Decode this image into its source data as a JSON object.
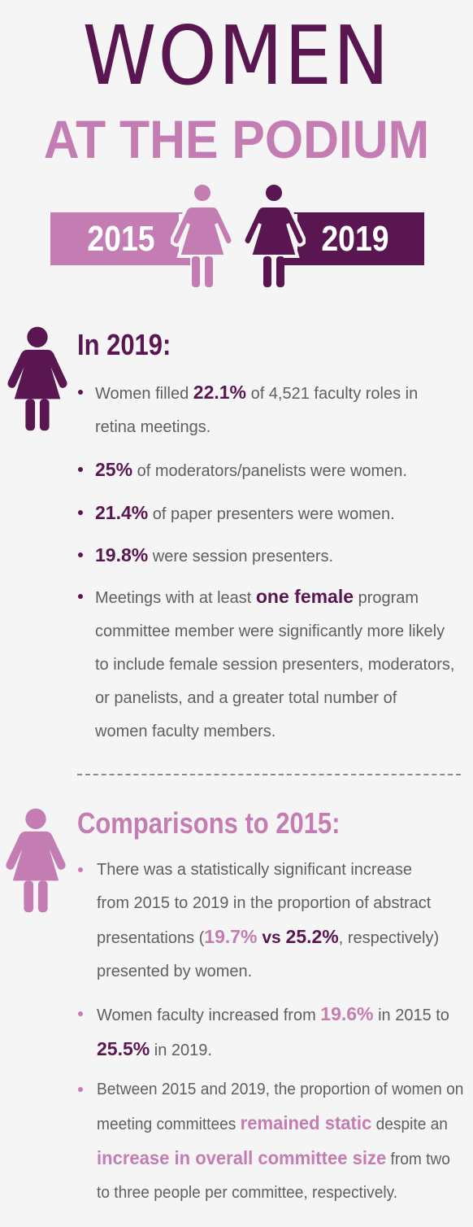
{
  "header": {
    "title_line1": "WOMEN",
    "title_line2": "AT THE PODIUM",
    "year_left": "2015",
    "year_right": "2019"
  },
  "colors": {
    "dark_purple": "#5a1650",
    "pink": "#c47db2",
    "text_gray": "#5f5f5f",
    "background": "#f5f5f5"
  },
  "icons": [
    "woman-figure-icon"
  ],
  "section_2019": {
    "heading": "In 2019:",
    "b1": {
      "l1a": "Women filled ",
      "l1b": "22.1%",
      "l1c": " of 4,521 faculty roles in",
      "l2": "retina meetings."
    },
    "b2": {
      "a": "25%",
      "b": " of moderators/panelists were women."
    },
    "b3": {
      "a": "21.4%",
      "b": " of paper presenters were women."
    },
    "b4": {
      "a": "19.8%",
      "b": " were session presenters."
    },
    "b5": {
      "l1a": "Meetings with at least ",
      "l1b": "one female",
      "l1c": " program",
      "l2": "committee member were significantly more likely",
      "l3": "to include female session presenters, moderators,",
      "l4": "or panelists, and a greater total number of",
      "l5": "women faculty members."
    }
  },
  "section_2015": {
    "heading": "Comparisons to 2015:",
    "b1": {
      "l1": "There was a statistically significant increase",
      "l2": "from 2015 to 2019 in the proportion of abstract",
      "l3a": "presentations (",
      "l3b": "19.7%",
      "l3c": " vs ",
      "l3d": "25.2%",
      "l3e": ", respectively)",
      "l4": "presented by women."
    },
    "b2": {
      "l1a": "Women faculty increased from ",
      "l1b": "19.6%",
      "l1c": " in 2015 to",
      "l2a": "25.5%",
      "l2b": " in 2019."
    },
    "b3": {
      "l1": "Between 2015 and 2019, the proportion of women on",
      "l2a": "meeting committees ",
      "l2b": "remained static",
      "l2c": " despite an",
      "l3a": "increase in overall committee size",
      "l3b": " from two",
      "l4": "to three people per committee, respectively."
    }
  }
}
